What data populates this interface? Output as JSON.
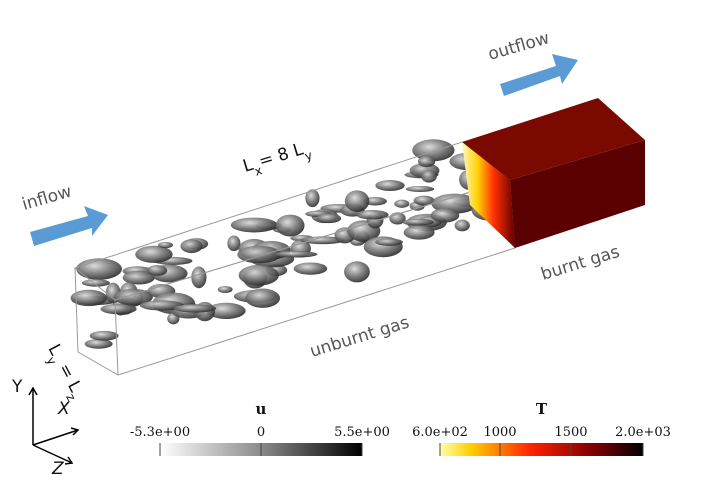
{
  "flow": {
    "inflow": "inflow",
    "outflow": "outflow"
  },
  "domain": {
    "length": [
      "L",
      "x",
      "= 8 L",
      "y"
    ],
    "width": [
      "L",
      "y",
      " = L",
      "z"
    ]
  },
  "regions": {
    "unburnt": "unburnt gas",
    "burnt": "burnt gas"
  },
  "axes": {
    "x": "X",
    "y": "Y",
    "z": "Z"
  },
  "colorbars": [
    {
      "title": "u",
      "ticks": [
        "-5.3e+00",
        "0",
        "5.5e+00"
      ]
    },
    {
      "title": "T",
      "ticks": [
        "6.0e+02",
        "1000",
        "1500",
        "2.0e+03"
      ]
    }
  ]
}
